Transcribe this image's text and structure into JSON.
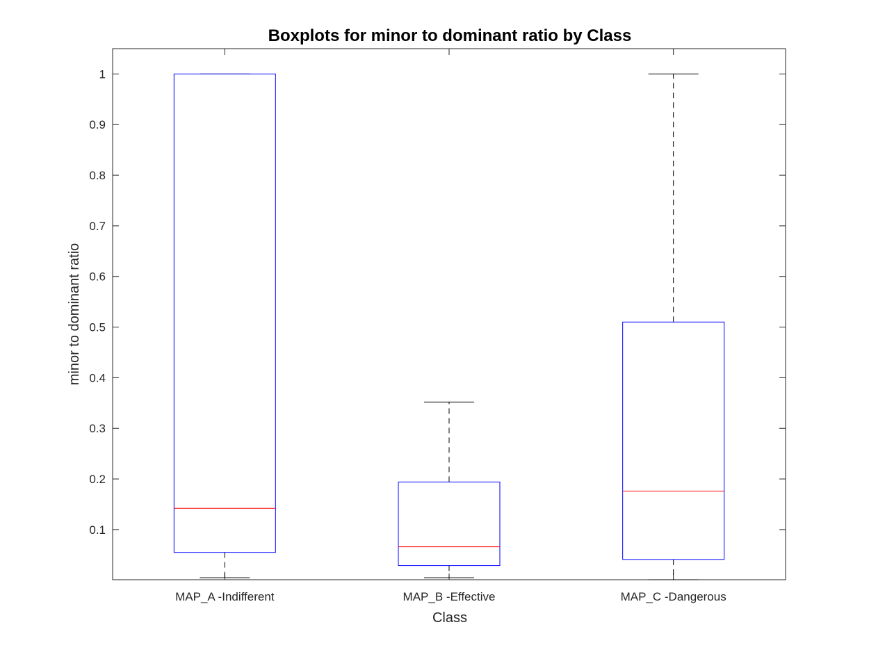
{
  "chart_data": {
    "type": "boxplot",
    "title": "Boxplots for minor to dominant ratio by Class",
    "xlabel": "Class",
    "ylabel": "minor to dominant ratio",
    "categories": [
      "MAP_A -Indifferent",
      "MAP_B -Effective",
      "MAP_C -Dangerous"
    ],
    "boxes": [
      {
        "min": 0.005,
        "q1": 0.055,
        "median": 0.142,
        "q3": 1.0,
        "max": 1.0
      },
      {
        "min": 0.005,
        "q1": 0.029,
        "median": 0.066,
        "q3": 0.194,
        "max": 0.352
      },
      {
        "min": 0.001,
        "q1": 0.041,
        "median": 0.176,
        "q3": 0.51,
        "max": 1.0
      }
    ],
    "ylim": [
      0.001,
      1.05
    ],
    "yticks": [
      0.1,
      0.2,
      0.3,
      0.4,
      0.5,
      0.6,
      0.7,
      0.8,
      0.9,
      1
    ],
    "ytick_labels": [
      "0.1",
      "0.2",
      "0.3",
      "0.4",
      "0.5",
      "0.6",
      "0.7",
      "0.8",
      "0.9",
      "1"
    ],
    "grid": false,
    "colors": {
      "box": "#0000ff",
      "median": "#ff0000",
      "whisker": "#000000",
      "axes": "#262626"
    }
  }
}
